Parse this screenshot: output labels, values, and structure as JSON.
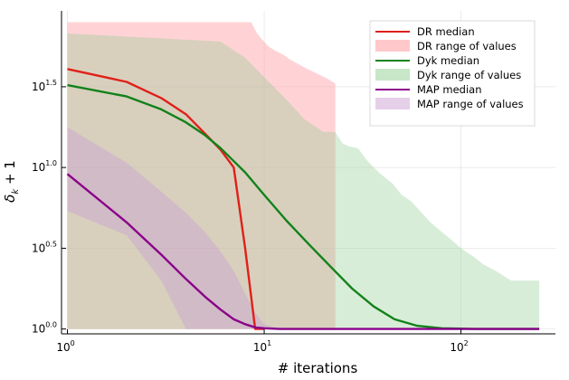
{
  "chart_data": {
    "type": "line",
    "xlabel": "# iterations",
    "ylabel": "δ_k + 1",
    "xscale": "log10",
    "yscale": "log10",
    "xlim_log10": [
      -0.03,
      2.48
    ],
    "ylim_log10": [
      -0.03,
      1.97
    ],
    "xticks": [
      {
        "base": "10",
        "exp": "0",
        "log": 0
      },
      {
        "base": "10",
        "exp": "1",
        "log": 1
      },
      {
        "base": "10",
        "exp": "2",
        "log": 2
      }
    ],
    "yticks": [
      {
        "base": "10",
        "exp": "0.0",
        "log": 0.0
      },
      {
        "base": "10",
        "exp": "0.5",
        "log": 0.5
      },
      {
        "base": "10",
        "exp": "1.0",
        "log": 1.0
      },
      {
        "base": "10",
        "exp": "1.5",
        "log": 1.5
      }
    ],
    "series": [
      {
        "name": "DR",
        "median_label": "DR median",
        "range_label": "DR range of values",
        "line_color": "#e0201a",
        "fill_color": "#ff9da3",
        "fill_opacity": 0.45,
        "median": [
          [
            1,
            1.61
          ],
          [
            2,
            1.53
          ],
          [
            3,
            1.43
          ],
          [
            4,
            1.33
          ],
          [
            5,
            1.21
          ],
          [
            6,
            1.11
          ],
          [
            7,
            1.0
          ],
          [
            8,
            0.5
          ],
          [
            9,
            0.0
          ],
          [
            10,
            0.0
          ]
        ],
        "range_upper": [
          [
            1,
            1.9
          ],
          [
            8.6,
            1.9
          ],
          [
            9.2,
            1.83
          ],
          [
            9.8,
            1.79
          ],
          [
            10.5,
            1.75
          ],
          [
            11.5,
            1.72
          ],
          [
            12.5,
            1.7
          ],
          [
            13.5,
            1.67
          ],
          [
            16,
            1.62
          ],
          [
            21,
            1.55
          ],
          [
            23,
            1.52
          ],
          [
            23.001,
            0
          ],
          [
            1,
            0
          ]
        ],
        "range_lower": [
          [
            1,
            0.0
          ]
        ]
      },
      {
        "name": "Dyk",
        "median_label": "Dyk median",
        "range_label": "Dyk range of values",
        "line_color": "#12821a",
        "fill_color": "#8ecb8e",
        "fill_opacity": 0.35,
        "median": [
          [
            1,
            1.51
          ],
          [
            2,
            1.44
          ],
          [
            3,
            1.36
          ],
          [
            4,
            1.28
          ],
          [
            5,
            1.2
          ],
          [
            6,
            1.12
          ],
          [
            8,
            0.97
          ],
          [
            10,
            0.83
          ],
          [
            13,
            0.67
          ],
          [
            17,
            0.52
          ],
          [
            22,
            0.38
          ],
          [
            28,
            0.25
          ],
          [
            36,
            0.14
          ],
          [
            46,
            0.06
          ],
          [
            60,
            0.02
          ],
          [
            80,
            0.005
          ],
          [
            120,
            0.0
          ],
          [
            250,
            0.0
          ]
        ],
        "range_upper": [
          [
            1,
            1.83
          ],
          [
            6,
            1.78
          ],
          [
            8,
            1.68
          ],
          [
            10,
            1.56
          ],
          [
            13,
            1.42
          ],
          [
            16,
            1.3
          ],
          [
            20,
            1.22
          ],
          [
            23,
            1.22
          ],
          [
            25,
            1.15
          ],
          [
            27,
            1.13
          ],
          [
            30,
            1.12
          ],
          [
            33,
            1.05
          ],
          [
            36,
            1.0
          ],
          [
            40,
            0.95
          ],
          [
            45,
            0.9
          ],
          [
            50,
            0.83
          ],
          [
            56,
            0.79
          ],
          [
            62,
            0.73
          ],
          [
            70,
            0.66
          ],
          [
            80,
            0.6
          ],
          [
            90,
            0.55
          ],
          [
            100,
            0.5
          ],
          [
            115,
            0.45
          ],
          [
            130,
            0.4
          ],
          [
            150,
            0.36
          ],
          [
            180,
            0.3
          ],
          [
            250,
            0.3
          ]
        ],
        "range_lower": [
          [
            250,
            0.0
          ],
          [
            1,
            0.0
          ]
        ]
      },
      {
        "name": "MAP",
        "median_label": "MAP median",
        "range_label": "MAP range of values",
        "line_color": "#8b008b",
        "fill_color": "#c89ad4",
        "fill_opacity": 0.4,
        "median": [
          [
            1,
            0.96
          ],
          [
            2,
            0.66
          ],
          [
            3,
            0.46
          ],
          [
            4,
            0.31
          ],
          [
            5,
            0.2
          ],
          [
            6,
            0.12
          ],
          [
            7,
            0.06
          ],
          [
            8,
            0.03
          ],
          [
            9,
            0.01
          ],
          [
            10,
            0.005
          ],
          [
            12,
            0.0
          ],
          [
            250,
            0.0
          ]
        ],
        "range_upper": [
          [
            1,
            1.25
          ],
          [
            2,
            1.03
          ],
          [
            3,
            0.85
          ],
          [
            4,
            0.72
          ],
          [
            5,
            0.6
          ],
          [
            6,
            0.48
          ],
          [
            7,
            0.36
          ],
          [
            8,
            0.22
          ],
          [
            9,
            0.1
          ],
          [
            10,
            0.03
          ],
          [
            12,
            0.0
          ]
        ],
        "range_lower": [
          [
            12,
            0.0
          ],
          [
            4,
            0.0
          ],
          [
            3,
            0.3
          ],
          [
            2,
            0.58
          ],
          [
            1,
            0.73
          ]
        ]
      }
    ],
    "legend": {
      "position": "top-right",
      "entries": [
        {
          "label": "DR median",
          "kind": "line",
          "color": "#e0201a"
        },
        {
          "label": "DR range of values",
          "kind": "fill",
          "color": "#ffc9cc"
        },
        {
          "label": "Dyk median",
          "kind": "line",
          "color": "#12821a"
        },
        {
          "label": "Dyk range of values",
          "kind": "fill",
          "color": "#c8e6c8"
        },
        {
          "label": "MAP median",
          "kind": "line",
          "color": "#8b008b"
        },
        {
          "label": "MAP range of values",
          "kind": "fill",
          "color": "#e6cfe9"
        }
      ]
    },
    "grid": true
  }
}
